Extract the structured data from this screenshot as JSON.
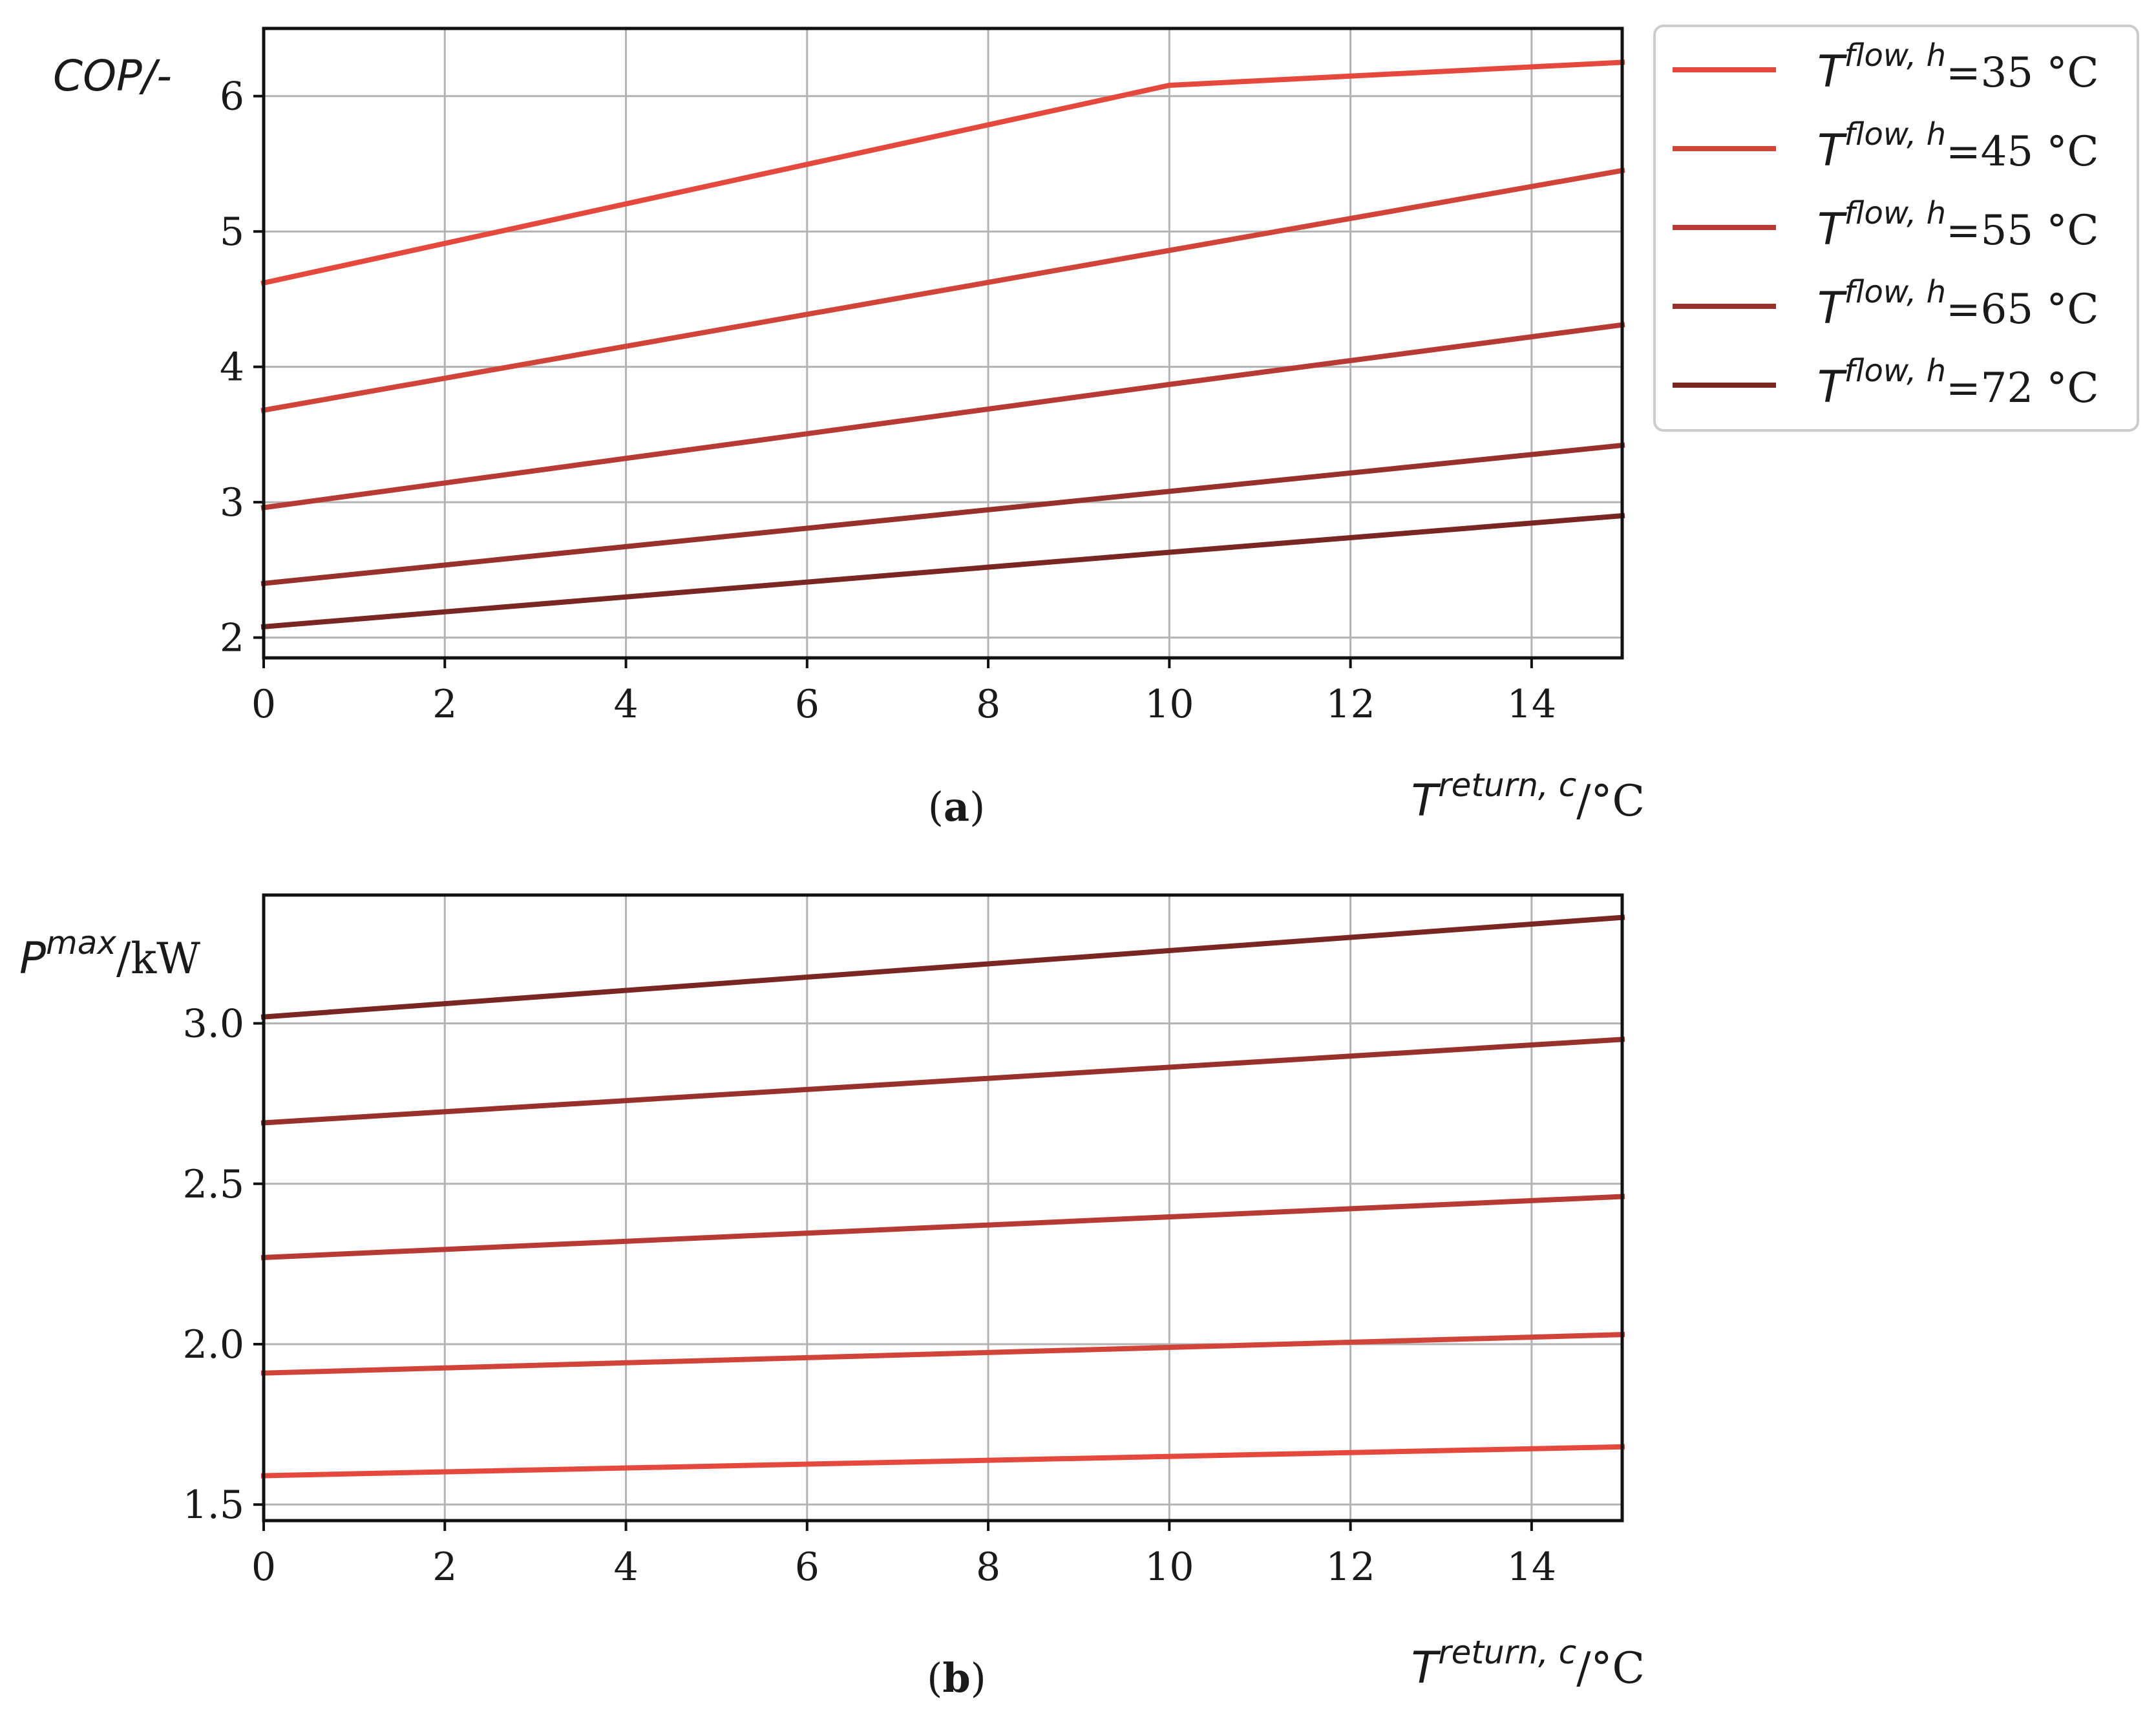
{
  "colors": {
    "t35": "#E5493E",
    "t45": "#D1443A",
    "t55": "#B73A34",
    "t65": "#98302B",
    "t72": "#7A2622",
    "grid": "#b3b3b3",
    "axis": "#111111"
  },
  "legend": {
    "prefix": "T",
    "superscript": "flow, h",
    "entries": [
      "=35 °C",
      "=45 °C",
      "=55 °C",
      "=65 °C",
      "=72 °C"
    ]
  },
  "chart_data": [
    {
      "type": "line",
      "caption_open": "(",
      "caption_letter": "a",
      "caption_close": ")",
      "ylabel": "COP/-",
      "xlabel_main": "T",
      "xlabel_sup": "return, c",
      "xlabel_unit": "/°C",
      "xlim": [
        0,
        15
      ],
      "ylim": [
        1.85,
        6.5
      ],
      "xticks": [
        0,
        2,
        4,
        6,
        8,
        10,
        12,
        14
      ],
      "yticks": [
        2,
        3,
        4,
        5,
        6
      ],
      "grid": true,
      "x": [
        0,
        10,
        15
      ],
      "series": [
        {
          "name": "T flow,h=35 °C",
          "color_key": "t35",
          "values": [
            4.62,
            6.08,
            6.25
          ]
        },
        {
          "name": "T flow,h=45 °C",
          "color_key": "t45",
          "values": [
            3.68,
            4.86,
            5.45
          ]
        },
        {
          "name": "T flow,h=55 °C",
          "color_key": "t55",
          "values": [
            2.96,
            3.87,
            4.31
          ]
        },
        {
          "name": "T flow,h=65 °C",
          "color_key": "t65",
          "values": [
            2.4,
            3.08,
            3.42
          ]
        },
        {
          "name": "T flow,h=72 °C",
          "color_key": "t72",
          "values": [
            2.08,
            2.63,
            2.9
          ]
        }
      ]
    },
    {
      "type": "line",
      "caption_open": "(",
      "caption_letter": "b",
      "caption_close": ")",
      "ylabel_main": "P",
      "ylabel_sup": "max",
      "ylabel_unit": "/kW",
      "xlabel_main": "T",
      "xlabel_sup": "return, c",
      "xlabel_unit": "/°C",
      "xlim": [
        0,
        15
      ],
      "ylim": [
        1.45,
        3.4
      ],
      "xticks": [
        0,
        2,
        4,
        6,
        8,
        10,
        12,
        14
      ],
      "yticks": [
        "1.5",
        "2.0",
        "2.5",
        "3.0"
      ],
      "grid": true,
      "x": [
        0,
        15
      ],
      "series": [
        {
          "name": "T flow,h=35 °C",
          "color_key": "t35",
          "values": [
            1.59,
            1.68
          ]
        },
        {
          "name": "T flow,h=45 °C",
          "color_key": "t45",
          "values": [
            1.91,
            2.03
          ]
        },
        {
          "name": "T flow,h=55 °C",
          "color_key": "t55",
          "values": [
            2.27,
            2.46
          ]
        },
        {
          "name": "T flow,h=65 °C",
          "color_key": "t65",
          "values": [
            2.69,
            2.95
          ]
        },
        {
          "name": "T flow,h=72 °C",
          "color_key": "t72",
          "values": [
            3.02,
            3.33
          ]
        }
      ]
    }
  ]
}
